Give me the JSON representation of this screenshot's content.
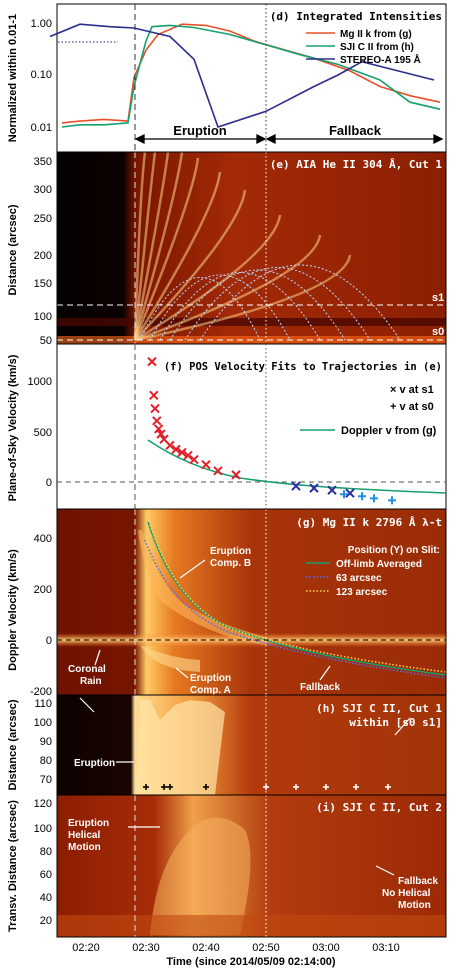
{
  "figure": {
    "time_axis": {
      "label": "Time (since 2014/05/09 02:14:00)",
      "ticks": [
        "02:20",
        "02:30",
        "02:40",
        "02:50",
        "03:00",
        "03:10"
      ],
      "range": [
        "02:15",
        "03:20"
      ],
      "eruption_start": "02:28",
      "fallback_start": "02:50"
    },
    "panels": {
      "d": {
        "title": "(d) Integrated Intensities",
        "ylabel": "Normalized within 0.01-1",
        "yticks": [
          "1.00",
          "0.10",
          "0.01"
        ],
        "legend": [
          "Mg II k from (g)",
          "SJI C II from (h)",
          "STEREO-A  195 Å"
        ],
        "colors": [
          "#e8502a",
          "#16a06e",
          "#2b2d8c"
        ],
        "phase_labels": [
          "Eruption",
          "Fallback"
        ]
      },
      "e": {
        "title": "(e) AIA He II 304 Å, Cut 1",
        "ylabel": "Distance (arcsec)",
        "yticks": [
          "350",
          "300",
          "250",
          "200",
          "150",
          "100",
          "50"
        ],
        "marker_labels": [
          "s1",
          "s0"
        ]
      },
      "f": {
        "title": "(f) POS Velocity Fits to Trajectories in (e)",
        "ylabel": "Plane-of-Sky Velocity (km/s)",
        "yticks": [
          "1000",
          "500",
          "0"
        ],
        "legend": [
          "× v at s1",
          "+ v at s0",
          "Doppler v from (g)"
        ]
      },
      "g": {
        "title": "(g) Mg II k 2796 Å λ-t",
        "ylabel": "Doppler Velocity (km/s)",
        "yticks": [
          "400",
          "200",
          "0",
          "-200"
        ],
        "legend_title": "Position (Y) on Slit:",
        "legend": [
          "Off-limb Averaged",
          "63 arcsec",
          "123 arcsec"
        ],
        "annotations": [
          "Eruption",
          "Comp. B",
          "Eruption",
          "Comp. A",
          "Coronal",
          "Rain",
          "Fallback"
        ]
      },
      "h": {
        "title": "(h) SJI C II, Cut 1",
        "subtitle": "within [s0 s1]",
        "ylabel": "Distance (arcsec)",
        "yticks": [
          "110",
          "100",
          "90",
          "80",
          "70"
        ],
        "annotation": "Eruption"
      },
      "i": {
        "title": "(i) SJI C II, Cut 2",
        "ylabel": "Transv. Distance (arcsec)",
        "yticks": [
          "120",
          "100",
          "80",
          "60",
          "40",
          "20"
        ],
        "annotations": [
          "Eruption",
          "Helical",
          "Motion",
          "Fallback",
          "No Helical",
          "Motion"
        ]
      }
    }
  },
  "chart_data": [
    {
      "type": "line",
      "panel": "d",
      "xunit": "minutes since 02:14:00",
      "yscale": "log",
      "ylim": [
        0.006,
        1.6
      ],
      "series": [
        {
          "name": "Mg II k from (g)",
          "x": [
            2,
            5,
            9,
            13,
            14,
            16,
            18,
            22,
            26,
            30,
            34,
            38,
            44,
            50,
            55,
            60,
            65
          ],
          "y": [
            0.012,
            0.013,
            0.014,
            0.013,
            0.09,
            0.3,
            0.6,
            0.95,
            0.9,
            0.7,
            0.45,
            0.33,
            0.21,
            0.12,
            0.06,
            0.04,
            0.03
          ]
        },
        {
          "name": "SJI C II from (h)",
          "x": [
            2,
            5,
            9,
            13,
            14,
            16,
            17,
            20,
            24,
            30,
            36,
            42,
            48,
            55,
            60,
            65
          ],
          "y": [
            0.01,
            0.011,
            0.011,
            0.012,
            0.06,
            0.45,
            0.85,
            0.9,
            0.82,
            0.6,
            0.38,
            0.24,
            0.16,
            0.08,
            0.03,
            0.022
          ]
        },
        {
          "name": "STEREO-A  195 Å",
          "x": [
            0,
            5,
            10,
            14,
            20,
            24,
            28,
            36,
            44,
            48,
            52,
            58,
            64
          ],
          "y": [
            0.55,
            0.95,
            0.85,
            0.8,
            0.55,
            0.2,
            0.01,
            0.02,
            0.06,
            0.1,
            0.18,
            0.12,
            0.08
          ]
        }
      ]
    },
    {
      "type": "scatter",
      "panel": "f",
      "xunit": "minutes since 02:14:00",
      "ylim": [
        -150,
        1250
      ],
      "series": [
        {
          "name": "v at s1 (erupt)",
          "x": [
            17.0,
            17.3,
            17.5,
            17.8,
            18.1,
            18.5,
            19,
            20,
            21,
            22,
            23,
            24,
            26,
            28,
            31
          ],
          "y": [
            1180,
            850,
            720,
            600,
            520,
            470,
            420,
            360,
            320,
            290,
            260,
            220,
            170,
            110,
            70
          ]
        },
        {
          "name": "v at s1 (fallback)",
          "x": [
            41,
            44,
            47,
            50
          ],
          "y": [
            -40,
            -60,
            -80,
            -110
          ]
        },
        {
          "name": "v at s0",
          "x": [
            49,
            52,
            54,
            57
          ],
          "y": [
            -120,
            -140,
            -160,
            -180
          ]
        }
      ]
    }
  ]
}
